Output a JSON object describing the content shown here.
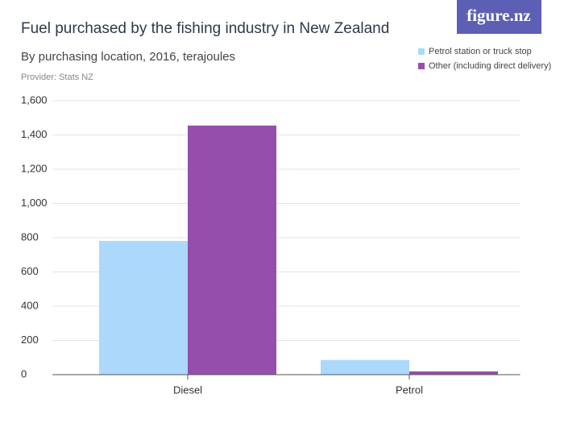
{
  "logo": "figure.nz",
  "chart_data": {
    "type": "bar",
    "title": "Fuel purchased by the fishing industry in New Zealand",
    "subtitle": "By purchasing location, 2016, terajoules",
    "source": "Provider: Stats NZ",
    "categories": [
      "Diesel",
      "Petrol"
    ],
    "series": [
      {
        "name": "Petrol station or truck stop",
        "color": "#acd8fc",
        "values": [
          781,
          86
        ]
      },
      {
        "name": "Other (including direct delivery)",
        "color": "#964ead",
        "values": [
          1455,
          19
        ]
      }
    ],
    "ylim": [
      0,
      1600
    ],
    "yticks": [
      0,
      200,
      400,
      600,
      800,
      {
        "value": 1000,
        "label": "1,000"
      },
      {
        "value": 1200,
        "label": "1,200"
      },
      {
        "value": 1400,
        "label": "1,400"
      },
      {
        "value": 1600,
        "label": "1,600"
      }
    ],
    "grid": true,
    "legend": "top-right"
  }
}
